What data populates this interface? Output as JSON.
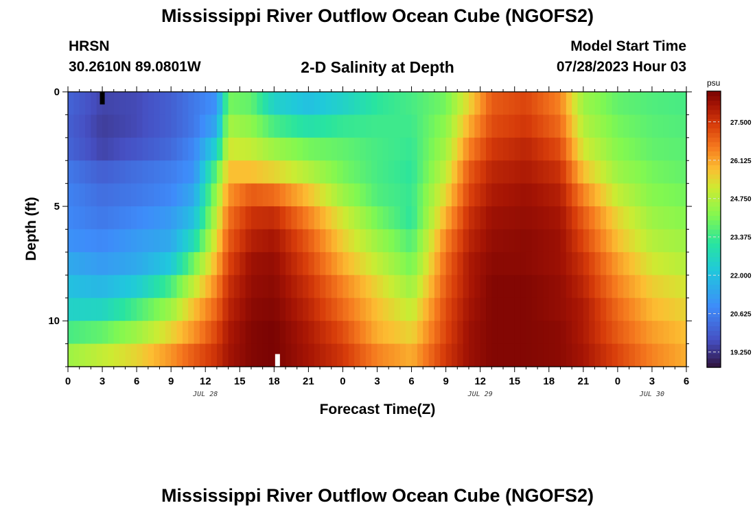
{
  "header": {
    "title": "Mississippi River Outflow Ocean Cube (NGOFS2)",
    "station": "HRSN",
    "coords": "30.2610N  89.0801W",
    "plot_title": "2-D Salinity at Depth",
    "start_label": "Model Start Time",
    "start_value": "07/28/2023 Hour 03",
    "footer_title": "Mississippi River Outflow Ocean Cube (NGOFS2)"
  },
  "chart_data": {
    "type": "heatmap",
    "title": "2-D Salinity at Depth",
    "xlabel": "Forecast Time(Z)",
    "ylabel": "Depth (ft)",
    "x_range_hours": [
      0,
      54
    ],
    "y_range_ft": [
      0,
      12
    ],
    "x_tick_labels": [
      "0",
      "3",
      "6",
      "9",
      "12",
      "15",
      "18",
      "21",
      "0",
      "3",
      "6",
      "9",
      "12",
      "15",
      "18",
      "21",
      "0",
      "3",
      "6"
    ],
    "y_tick_labels": [
      "0",
      "5",
      "10"
    ],
    "y_tick_values": [
      0,
      5,
      10
    ],
    "date_labels": [
      {
        "text": "JUL 28",
        "hour": 12
      },
      {
        "text": "JUL 29",
        "hour": 36
      },
      {
        "text": "JUL 30",
        "hour": 51
      }
    ],
    "colorbar": {
      "unit": "psu",
      "min": 18.7,
      "max": 28.6,
      "tick_labels": [
        "27.500",
        "26.125",
        "24.750",
        "23.375",
        "22.000",
        "20.625",
        "19.250"
      ],
      "tick_values": [
        27.5,
        26.125,
        24.75,
        23.375,
        22.0,
        20.625,
        19.25
      ]
    },
    "depth_levels_ft": [
      0.5,
      1.5,
      2.5,
      3.5,
      4.5,
      5.5,
      6.5,
      7.5,
      8.5,
      9.5,
      10.5,
      11.5
    ],
    "salinity_by_hour": [
      {
        "hour": 0,
        "values": [
          20.1,
          20.0,
          20.1,
          20.5,
          20.7,
          20.8,
          21.0,
          21.5,
          22.0,
          22.5,
          23.5,
          24.5
        ]
      },
      {
        "hour": 3,
        "values": [
          19.5,
          19.4,
          19.5,
          20.0,
          20.3,
          20.5,
          20.8,
          21.2,
          21.8,
          22.6,
          23.8,
          25.0
        ]
      },
      {
        "hour": 6,
        "values": [
          19.6,
          19.6,
          19.8,
          20.3,
          20.5,
          20.8,
          21.2,
          21.5,
          22.3,
          23.5,
          24.5,
          25.5
        ]
      },
      {
        "hour": 9,
        "values": [
          20.0,
          20.0,
          20.2,
          20.6,
          20.8,
          21.2,
          21.5,
          22.2,
          23.5,
          24.5,
          25.5,
          26.3
        ]
      },
      {
        "hour": 11,
        "values": [
          20.5,
          20.5,
          20.8,
          21.0,
          21.5,
          22.0,
          22.8,
          24.0,
          25.0,
          25.8,
          26.3,
          27.0
        ]
      },
      {
        "hour": 13,
        "values": [
          21.0,
          21.5,
          22.5,
          23.8,
          24.5,
          25.0,
          25.5,
          26.0,
          26.5,
          26.9,
          27.3,
          27.6
        ]
      },
      {
        "hour": 14,
        "values": [
          24.0,
          24.6,
          25.2,
          25.8,
          26.3,
          26.7,
          27.0,
          27.3,
          27.6,
          27.8,
          28.0,
          28.1
        ]
      },
      {
        "hour": 16,
        "values": [
          23.8,
          24.3,
          25.0,
          25.8,
          27.0,
          27.6,
          27.9,
          28.2,
          28.3,
          28.4,
          28.5,
          28.5
        ]
      },
      {
        "hour": 18,
        "values": [
          22.5,
          23.5,
          24.5,
          25.5,
          26.8,
          27.7,
          28.1,
          28.3,
          28.4,
          28.5,
          28.6,
          28.6
        ]
      },
      {
        "hour": 21,
        "values": [
          22.0,
          23.0,
          24.0,
          24.8,
          25.8,
          26.5,
          27.0,
          27.3,
          27.6,
          27.8,
          28.0,
          28.1
        ]
      },
      {
        "hour": 24,
        "values": [
          22.5,
          23.3,
          23.8,
          24.0,
          24.5,
          25.2,
          25.6,
          26.0,
          26.5,
          26.8,
          27.2,
          27.5
        ]
      },
      {
        "hour": 27,
        "values": [
          23.2,
          23.4,
          23.5,
          23.5,
          23.6,
          24.0,
          24.5,
          25.0,
          25.5,
          25.8,
          26.0,
          26.5
        ]
      },
      {
        "hour": 30,
        "values": [
          23.5,
          23.4,
          23.3,
          23.2,
          23.3,
          23.2,
          23.6,
          24.0,
          24.5,
          25.0,
          25.5,
          26.0
        ]
      },
      {
        "hour": 33,
        "values": [
          24.0,
          24.3,
          24.6,
          25.0,
          25.5,
          26.0,
          26.5,
          26.8,
          27.0,
          27.2,
          27.3,
          27.5
        ]
      },
      {
        "hour": 35,
        "values": [
          25.5,
          26.0,
          26.5,
          27.0,
          27.3,
          27.6,
          27.8,
          28.0,
          28.0,
          28.1,
          28.2,
          28.2
        ]
      },
      {
        "hour": 37,
        "values": [
          27.0,
          27.2,
          27.5,
          27.8,
          28.0,
          28.2,
          28.3,
          28.4,
          28.5,
          28.5,
          28.5,
          28.5
        ]
      },
      {
        "hour": 40,
        "values": [
          27.3,
          27.5,
          27.8,
          28.0,
          28.2,
          28.3,
          28.4,
          28.4,
          28.5,
          28.5,
          28.5,
          28.5
        ]
      },
      {
        "hour": 43,
        "values": [
          26.5,
          26.8,
          27.2,
          27.6,
          27.9,
          28.1,
          28.2,
          28.2,
          28.3,
          28.3,
          28.4,
          28.4
        ]
      },
      {
        "hour": 45,
        "values": [
          24.5,
          24.8,
          25.2,
          25.8,
          26.5,
          27.0,
          27.3,
          27.6,
          27.8,
          28.0,
          28.0,
          28.1
        ]
      },
      {
        "hour": 48,
        "values": [
          23.8,
          24.0,
          24.2,
          24.5,
          25.0,
          25.5,
          25.8,
          26.2,
          26.5,
          26.8,
          27.0,
          27.3
        ]
      },
      {
        "hour": 51,
        "values": [
          23.6,
          23.7,
          23.8,
          24.0,
          24.2,
          24.5,
          24.8,
          25.2,
          25.6,
          25.9,
          26.2,
          26.5
        ]
      },
      {
        "hour": 54,
        "values": [
          23.5,
          23.6,
          23.7,
          23.8,
          24.0,
          24.2,
          24.5,
          24.8,
          25.2,
          25.5,
          25.8,
          26.0
        ]
      }
    ],
    "markers": [
      {
        "name": "marker-black-top",
        "hour": 3,
        "depth_from_ft": 0,
        "depth_to_ft": 0.55,
        "color": "#000000"
      },
      {
        "name": "marker-white-bottom",
        "hour": 18.3,
        "depth_from_ft": 11.45,
        "depth_to_ft": 12,
        "color": "#ffffff"
      }
    ]
  }
}
